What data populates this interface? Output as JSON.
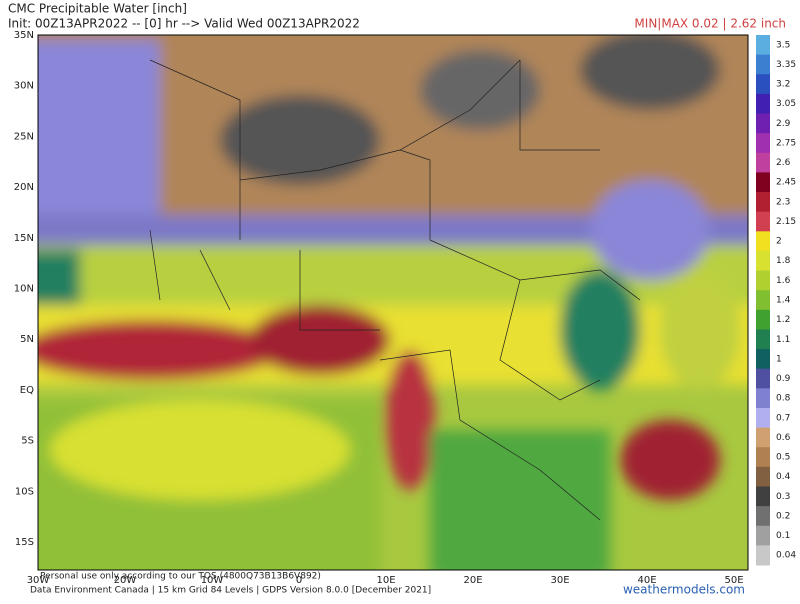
{
  "header": {
    "title": "CMC Precipitable Water [inch]",
    "init": "Init: 00Z13APR2022 -- [0] hr --> Valid Wed 00Z13APR2022",
    "minmax": "MIN|MAX 0.02 | 2.62 inch"
  },
  "lat_labels": [
    "35N",
    "30N",
    "25N",
    "20N",
    "15N",
    "10N",
    "5N",
    "EQ",
    "5S",
    "10S",
    "15S"
  ],
  "lon_labels": [
    "30W",
    "20W",
    "10W",
    "0",
    "10E",
    "20E",
    "30E",
    "40E",
    "50E"
  ],
  "colorbar": {
    "labels": [
      "3.5",
      "3.35",
      "3.2",
      "3.05",
      "2.9",
      "2.75",
      "2.6",
      "2.45",
      "2.3",
      "2.15",
      "2",
      "1.8",
      "1.6",
      "1.4",
      "1.2",
      "1.1",
      "1",
      "0.9",
      "0.8",
      "0.7",
      "0.6",
      "0.5",
      "0.4",
      "0.3",
      "0.2",
      "0.1",
      "0.04"
    ],
    "colors": [
      "#5aaee0",
      "#3a7fd0",
      "#2a50c0",
      "#4020b0",
      "#7020b0",
      "#a030b0",
      "#c040a0",
      "#800020",
      "#b02030",
      "#d04050",
      "#f0e020",
      "#d8e030",
      "#b0d030",
      "#80c030",
      "#40a030",
      "#208050",
      "#106060",
      "#5050a0",
      "#8080d0",
      "#b0b0f0",
      "#d0a070",
      "#b08050",
      "#806040",
      "#404040",
      "#707070",
      "#a0a0a0",
      "#c8c8c8"
    ]
  },
  "footer": {
    "terms": "Personal use only according to our TOS (4800Q73B13B6V892)",
    "credit": "Data Environment Canada | 15 km Grid 84 Levels | GDPS Version 8.0.0 [December 2021]",
    "site": "weathermodels.com"
  }
}
